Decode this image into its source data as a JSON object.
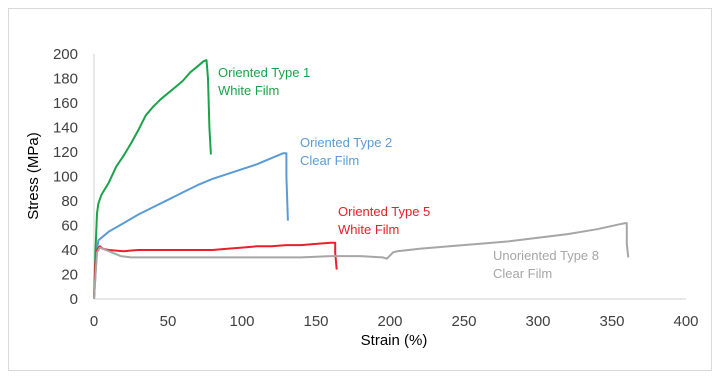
{
  "chart_data": {
    "type": "line",
    "title": "",
    "xlabel": "Strain (%)",
    "ylabel": "Stress (MPa)",
    "xlim": [
      0,
      400
    ],
    "ylim": [
      0,
      200
    ],
    "xticks": [
      0,
      50,
      100,
      150,
      200,
      250,
      300,
      350,
      400
    ],
    "yticks": [
      0,
      20,
      40,
      60,
      80,
      100,
      120,
      140,
      160,
      180,
      200
    ],
    "grid": false,
    "legend": "inline labels",
    "series": [
      {
        "name": "Oriented Type 1 White Film",
        "label_line1": "Oriented Type 1",
        "label_line2": "White Film",
        "color": "#1aa34a",
        "points": [
          [
            0,
            0
          ],
          [
            1,
            40
          ],
          [
            2,
            70
          ],
          [
            3,
            78
          ],
          [
            5,
            85
          ],
          [
            10,
            95
          ],
          [
            15,
            108
          ],
          [
            20,
            117
          ],
          [
            25,
            127
          ],
          [
            30,
            138
          ],
          [
            35,
            150
          ],
          [
            40,
            157
          ],
          [
            45,
            163
          ],
          [
            50,
            168
          ],
          [
            55,
            173
          ],
          [
            60,
            178
          ],
          [
            65,
            185
          ],
          [
            70,
            190
          ],
          [
            74,
            194
          ],
          [
            76,
            195
          ],
          [
            77,
            180
          ],
          [
            78,
            140
          ],
          [
            79,
            118
          ]
        ]
      },
      {
        "name": "Oriented Type 2 Clear Film",
        "label_line1": "Oriented Type 2",
        "label_line2": "Clear Film",
        "color": "#5b9bd5",
        "points": [
          [
            0,
            0
          ],
          [
            1,
            20
          ],
          [
            2,
            40
          ],
          [
            3,
            48
          ],
          [
            5,
            50
          ],
          [
            10,
            55
          ],
          [
            20,
            62
          ],
          [
            30,
            69
          ],
          [
            40,
            75
          ],
          [
            50,
            81
          ],
          [
            60,
            87
          ],
          [
            70,
            93
          ],
          [
            80,
            98
          ],
          [
            90,
            102
          ],
          [
            100,
            106
          ],
          [
            110,
            110
          ],
          [
            120,
            115
          ],
          [
            128,
            119
          ],
          [
            130,
            119
          ],
          [
            130,
            100
          ],
          [
            131,
            64
          ]
        ]
      },
      {
        "name": "Oriented Type 5 White Film",
        "label_line1": "Oriented Type 5",
        "label_line2": "White Film",
        "color": "#e8202a",
        "points": [
          [
            0,
            0
          ],
          [
            1,
            30
          ],
          [
            2,
            40
          ],
          [
            4,
            43
          ],
          [
            6,
            41
          ],
          [
            10,
            40
          ],
          [
            20,
            39
          ],
          [
            30,
            40
          ],
          [
            40,
            40
          ],
          [
            50,
            40
          ],
          [
            60,
            40
          ],
          [
            70,
            40
          ],
          [
            80,
            40
          ],
          [
            90,
            41
          ],
          [
            100,
            42
          ],
          [
            110,
            43
          ],
          [
            120,
            43
          ],
          [
            130,
            44
          ],
          [
            140,
            44
          ],
          [
            150,
            45
          ],
          [
            160,
            46
          ],
          [
            163,
            46
          ],
          [
            163,
            38
          ],
          [
            164,
            24
          ]
        ]
      },
      {
        "name": "Unoriented Type 8 Clear Film",
        "label_line1": "Unoriented Type 8",
        "label_line2": "Clear Film",
        "color": "#a6a6a6",
        "points": [
          [
            0,
            0
          ],
          [
            1,
            20
          ],
          [
            2,
            38
          ],
          [
            4,
            42
          ],
          [
            8,
            40
          ],
          [
            12,
            38
          ],
          [
            18,
            35
          ],
          [
            25,
            34
          ],
          [
            40,
            34
          ],
          [
            60,
            34
          ],
          [
            80,
            34
          ],
          [
            100,
            34
          ],
          [
            120,
            34
          ],
          [
            140,
            34
          ],
          [
            160,
            35
          ],
          [
            180,
            35
          ],
          [
            195,
            34
          ],
          [
            198,
            33
          ],
          [
            202,
            38
          ],
          [
            205,
            39
          ],
          [
            220,
            41
          ],
          [
            240,
            43
          ],
          [
            260,
            45
          ],
          [
            280,
            47
          ],
          [
            300,
            50
          ],
          [
            320,
            53
          ],
          [
            340,
            57
          ],
          [
            355,
            61
          ],
          [
            359,
            62
          ],
          [
            360,
            62
          ],
          [
            360,
            45
          ],
          [
            361,
            34
          ]
        ]
      }
    ]
  }
}
